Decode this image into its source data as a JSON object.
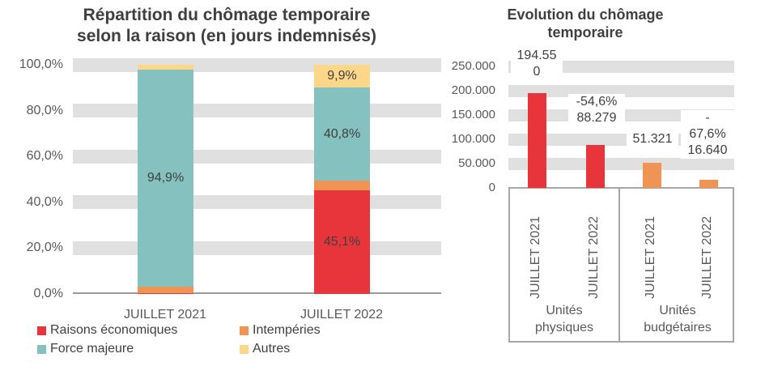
{
  "page": {
    "background": "#ffffff"
  },
  "colors": {
    "red": "#e8353b",
    "orange": "#ef9455",
    "teal": "#85c1be",
    "yellow": "#fdd789",
    "gridline_band": "#e0e0e0",
    "axis_line": "#9a9a9a",
    "box_border": "#a6a6a6",
    "title_text": "#3f3f3f",
    "axis_text": "#595959"
  },
  "chart_data": [
    {
      "type": "bar",
      "variant": "stacked-100-percent",
      "title": "Répartition du chômage temporaire selon la raison (en jours indemnisés)",
      "title_lines": [
        "Répartition du chômage temporaire",
        "selon la raison (en jours indemnisés)"
      ],
      "categories": [
        "JUILLET 2021",
        "JUILLET 2022"
      ],
      "series": [
        {
          "name": "Raisons économiques",
          "color": "#e8353b",
          "values": [
            0.2,
            45.1
          ]
        },
        {
          "name": "Intempéries",
          "color": "#ef9455",
          "values": [
            2.9,
            4.2
          ]
        },
        {
          "name": "Force majeure",
          "color": "#85c1be",
          "values": [
            94.9,
            40.8
          ]
        },
        {
          "name": "Autres",
          "color": "#fdd789",
          "values": [
            2.0,
            9.9
          ]
        }
      ],
      "segment_labels": [
        [
          "",
          "",
          "94,9%",
          ""
        ],
        [
          "45,1%",
          "",
          "40,8%",
          "9,9%"
        ]
      ],
      "y_ticks": [
        "100,0%",
        "80,0%",
        "60,0%",
        "40,0%",
        "20,0%",
        "0,0%"
      ],
      "ylim": [
        0,
        100
      ],
      "grid": "horizontal-bands",
      "legend_position": "bottom"
    },
    {
      "type": "bar",
      "title": "Evolution du chômage temporaire",
      "title_lines": [
        "Evolution du chômage",
        "temporaire"
      ],
      "groups": [
        "Unités physiques",
        "Unités budgétaires"
      ],
      "categories": [
        "JUILLET 2021",
        "JUILLET 2022",
        "JUILLET 2021",
        "JUILLET 2022"
      ],
      "values": [
        194550,
        88279,
        51321,
        16640
      ],
      "bar_colors": [
        "#e8353b",
        "#e8353b",
        "#ef9455",
        "#ef9455"
      ],
      "data_labels": [
        {
          "lines": [
            "194.55",
            "0"
          ],
          "value_text": "194.550"
        },
        {
          "lines": [
            "-54,6%",
            "88.279"
          ],
          "percent_text": "-54,6%",
          "value_text": "88.279"
        },
        {
          "lines": [
            "51.321"
          ],
          "value_text": "51.321"
        },
        {
          "lines": [
            "-",
            "67,6%",
            "16.640"
          ],
          "percent_text": "-67,6%",
          "value_text": "16.640"
        }
      ],
      "y_ticks": [
        "250.000",
        "200.000",
        "150.000",
        "100.000",
        "50.000",
        "0"
      ],
      "ylim": [
        0,
        250000
      ],
      "grid": "horizontal-bands"
    }
  ]
}
